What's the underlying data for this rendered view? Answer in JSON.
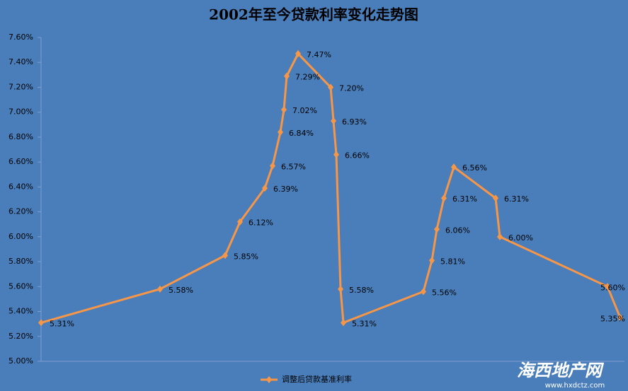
{
  "chart_data": {
    "type": "line",
    "title": "2002年至今贷款利率变化走势图",
    "categories": [
      null,
      null,
      null,
      null,
      null,
      null,
      null,
      null,
      null,
      null,
      null,
      null,
      null,
      null,
      null,
      null,
      null,
      null,
      null,
      null,
      null,
      null,
      null,
      null
    ],
    "series": [
      {
        "name": "调整后贷款基准利率",
        "color": "#f79646",
        "values": [
          5.31,
          5.58,
          5.85,
          6.12,
          6.39,
          6.57,
          6.84,
          7.02,
          7.29,
          7.47,
          7.2,
          6.93,
          6.66,
          5.58,
          5.31,
          5.56,
          5.81,
          6.06,
          6.31,
          6.56,
          6.31,
          6.0,
          5.6,
          5.35
        ],
        "value_labels": [
          "5.31%",
          "5.58%",
          "5.85%",
          "6.12%",
          "6.39%",
          "6.57%",
          "6.84%",
          "7.02%",
          "7.29%",
          "7.47%",
          "7.20%",
          "6.93%",
          "6.66%",
          "5.58%",
          "5.31%",
          "5.56%",
          "5.81%",
          "6.06%",
          "6.31%",
          "6.56%",
          "6.31%",
          "6.00%",
          "5.60%",
          "5.35%"
        ]
      }
    ],
    "ylim": [
      5.0,
      7.6
    ],
    "yticks": [
      {
        "value": 5.0,
        "label": "5.00%"
      },
      {
        "value": 5.2,
        "label": "5.20%"
      },
      {
        "value": 5.4,
        "label": "5.40%"
      },
      {
        "value": 5.6,
        "label": "5.60%"
      },
      {
        "value": 5.8,
        "label": "5.80%"
      },
      {
        "value": 6.0,
        "label": "6.00%"
      },
      {
        "value": 6.2,
        "label": "6.20%"
      },
      {
        "value": 6.4,
        "label": "6.40%"
      },
      {
        "value": 6.6,
        "label": "6.60%"
      },
      {
        "value": 6.8,
        "label": "6.80%"
      },
      {
        "value": 7.0,
        "label": "7.00%"
      },
      {
        "value": 7.2,
        "label": "7.20%"
      },
      {
        "value": 7.4,
        "label": "7.40%"
      },
      {
        "value": 7.6,
        "label": "7.60%"
      }
    ],
    "legend": "bottom",
    "watermark": {
      "name": "海西地产网",
      "url": "www.hxdctz.com"
    }
  }
}
